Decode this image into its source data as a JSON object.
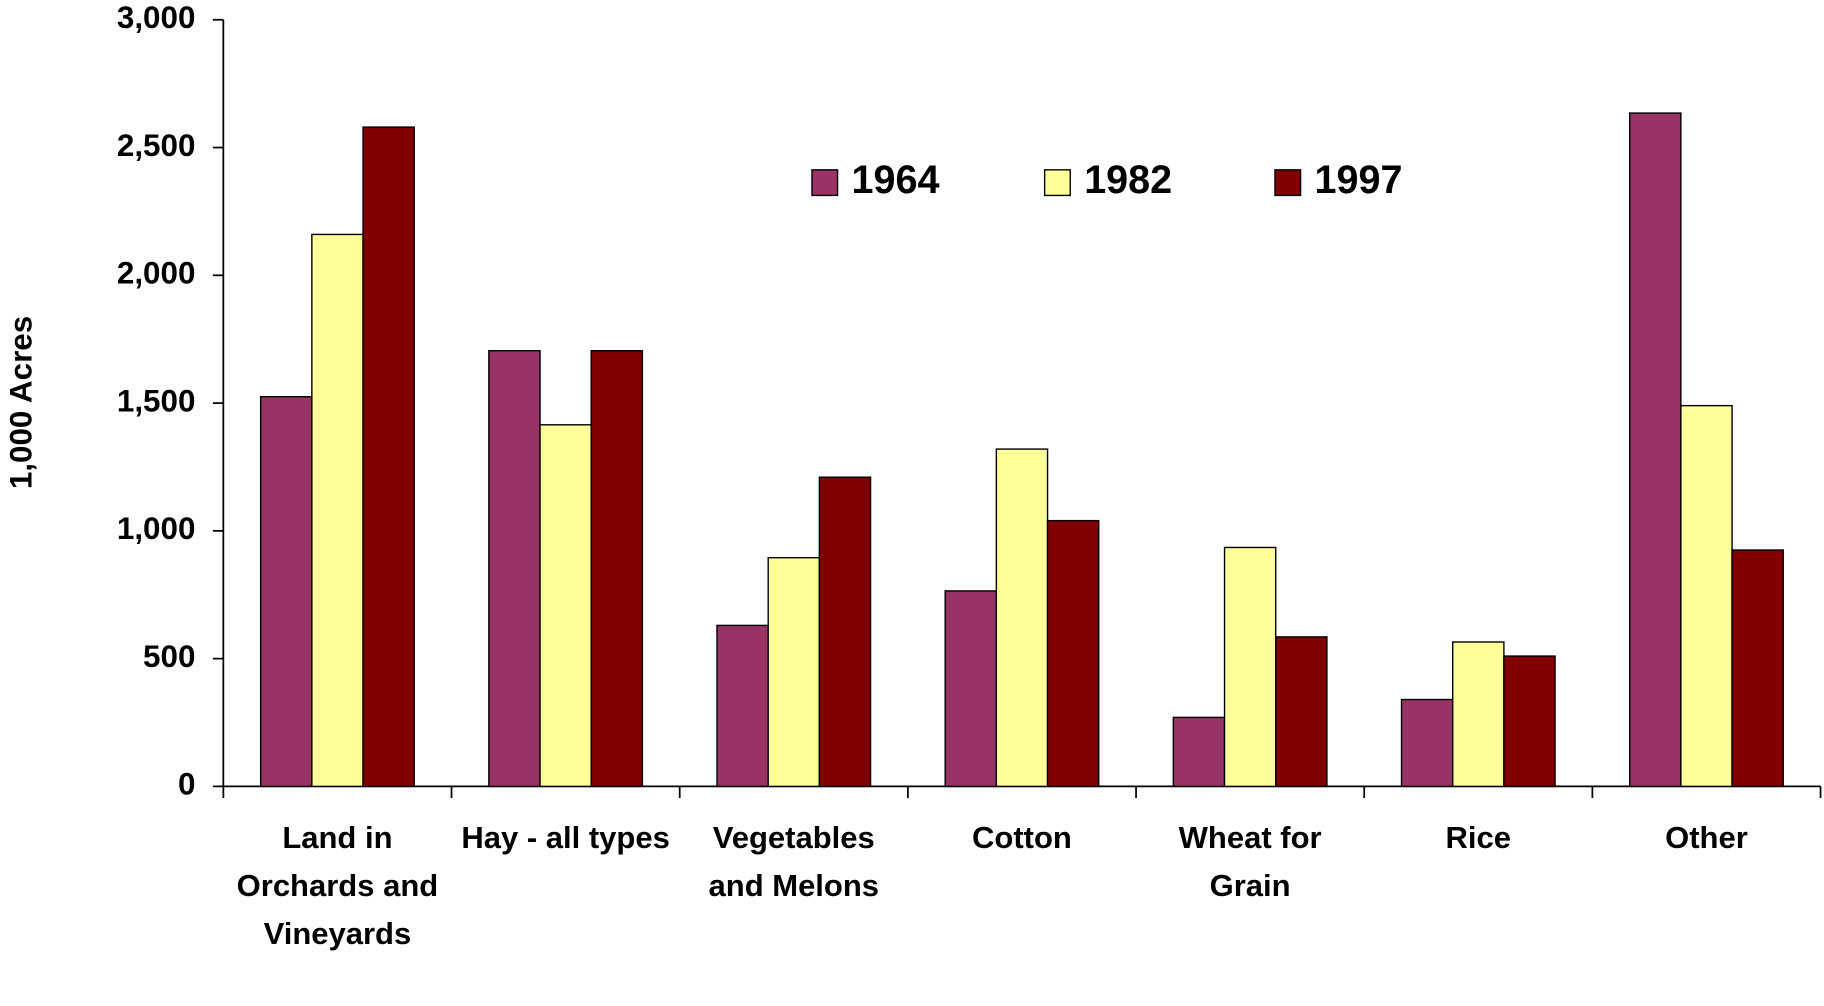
{
  "chart_data": {
    "type": "bar",
    "y_label": "1,000 Acres",
    "categories": [
      "Land in Orchards and Vineyards",
      "Hay - all types",
      "Vegetables and Melons",
      "Cotton",
      "Wheat for Grain",
      "Rice",
      "Other"
    ],
    "series": [
      {
        "name": "1964",
        "color": "#993366",
        "values": [
          1525,
          1705,
          630,
          765,
          270,
          340,
          2635
        ]
      },
      {
        "name": "1982",
        "color": "#ffff99",
        "values": [
          2160,
          1415,
          895,
          1320,
          935,
          565,
          1490
        ]
      },
      {
        "name": "1997",
        "color": "#800000",
        "values": [
          2580,
          1705,
          1210,
          1040,
          585,
          510,
          925
        ]
      }
    ],
    "ylim": [
      0,
      3000
    ],
    "yticks": [
      0,
      {
        "value": 500,
        "label": "500"
      },
      {
        "value": 1000,
        "label": "1,000"
      },
      {
        "value": 1500,
        "label": "1,500"
      },
      {
        "value": 2000,
        "label": "2,000"
      },
      {
        "value": 2500,
        "label": "2,500"
      },
      {
        "value": 3000,
        "label": "3,000"
      }
    ],
    "grid": false,
    "legend": "top"
  }
}
